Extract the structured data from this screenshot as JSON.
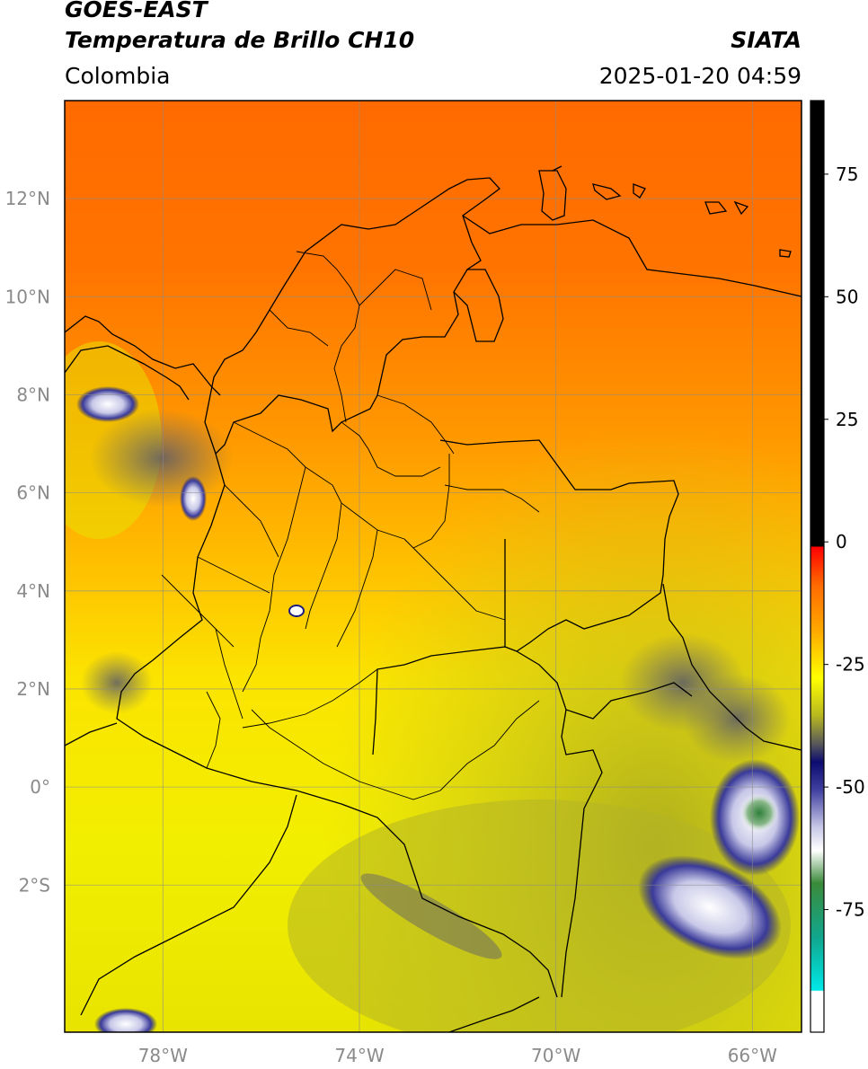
{
  "header": {
    "satellite": "GOES-EAST",
    "product": "Temperatura de Brillo CH10",
    "region": "Colombia",
    "brand": "SIATA",
    "timestamp": "2025-01-20 04:59"
  },
  "map": {
    "lon_range": [
      -80,
      -65
    ],
    "lat_range": [
      -5,
      14
    ],
    "lon_ticks": [
      {
        "value": -78,
        "label": "78°W"
      },
      {
        "value": -74,
        "label": "74°W"
      },
      {
        "value": -70,
        "label": "70°W"
      },
      {
        "value": -66,
        "label": "66°W"
      }
    ],
    "lat_ticks": [
      {
        "value": 12,
        "label": "12°N"
      },
      {
        "value": 10,
        "label": "10°N"
      },
      {
        "value": 8,
        "label": "8°N"
      },
      {
        "value": 6,
        "label": "6°N"
      },
      {
        "value": 4,
        "label": "4°N"
      },
      {
        "value": 2,
        "label": "2°N"
      },
      {
        "value": 0,
        "label": "0°"
      },
      {
        "value": -2,
        "label": "2°S"
      }
    ],
    "grid": true,
    "colors": {
      "warm_north": "#ff6a00",
      "mid": "#ffae00",
      "yellow": "#f5f000",
      "olive": "#b8b820",
      "navy": "#1c1c7a",
      "cloud_white": "#f0f0ff",
      "green": "#3a8a3a"
    }
  },
  "colorbar": {
    "ticks": [
      {
        "value": 75,
        "label": "75"
      },
      {
        "value": 50,
        "label": "50"
      },
      {
        "value": 25,
        "label": "25"
      },
      {
        "value": 0,
        "label": "0"
      },
      {
        "value": -25,
        "label": "-25"
      },
      {
        "value": -50,
        "label": "-50"
      },
      {
        "value": -75,
        "label": "-75"
      }
    ],
    "range": [
      -100,
      90
    ]
  }
}
